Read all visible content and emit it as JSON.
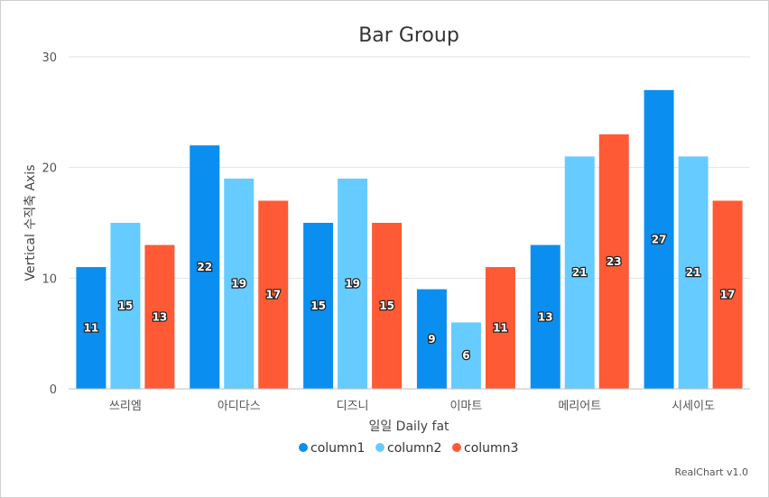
{
  "colors": {
    "column1": "#0a8ff0",
    "column2": "#66ccff",
    "column3": "#ff5a36"
  },
  "credits": "RealChart v1.0",
  "chart_data": {
    "type": "bar",
    "title": "Bar Group",
    "xlabel": "일일 Daily fat",
    "ylabel": "Vertical 수직축 Axis",
    "categories": [
      "쓰리엠",
      "아디다스",
      "디즈니",
      "이마트",
      "메리어트",
      "시세이도"
    ],
    "series": [
      {
        "name": "column1",
        "values": [
          11,
          22,
          15,
          9,
          13,
          27
        ]
      },
      {
        "name": "column2",
        "values": [
          15,
          19,
          19,
          6,
          21,
          21
        ]
      },
      {
        "name": "column3",
        "values": [
          13,
          17,
          15,
          11,
          23,
          17
        ]
      }
    ],
    "ylim": [
      0,
      30
    ],
    "yticks": [
      0,
      10,
      20,
      30
    ],
    "grid": true,
    "legend_position": "bottom",
    "data_labels": true
  }
}
